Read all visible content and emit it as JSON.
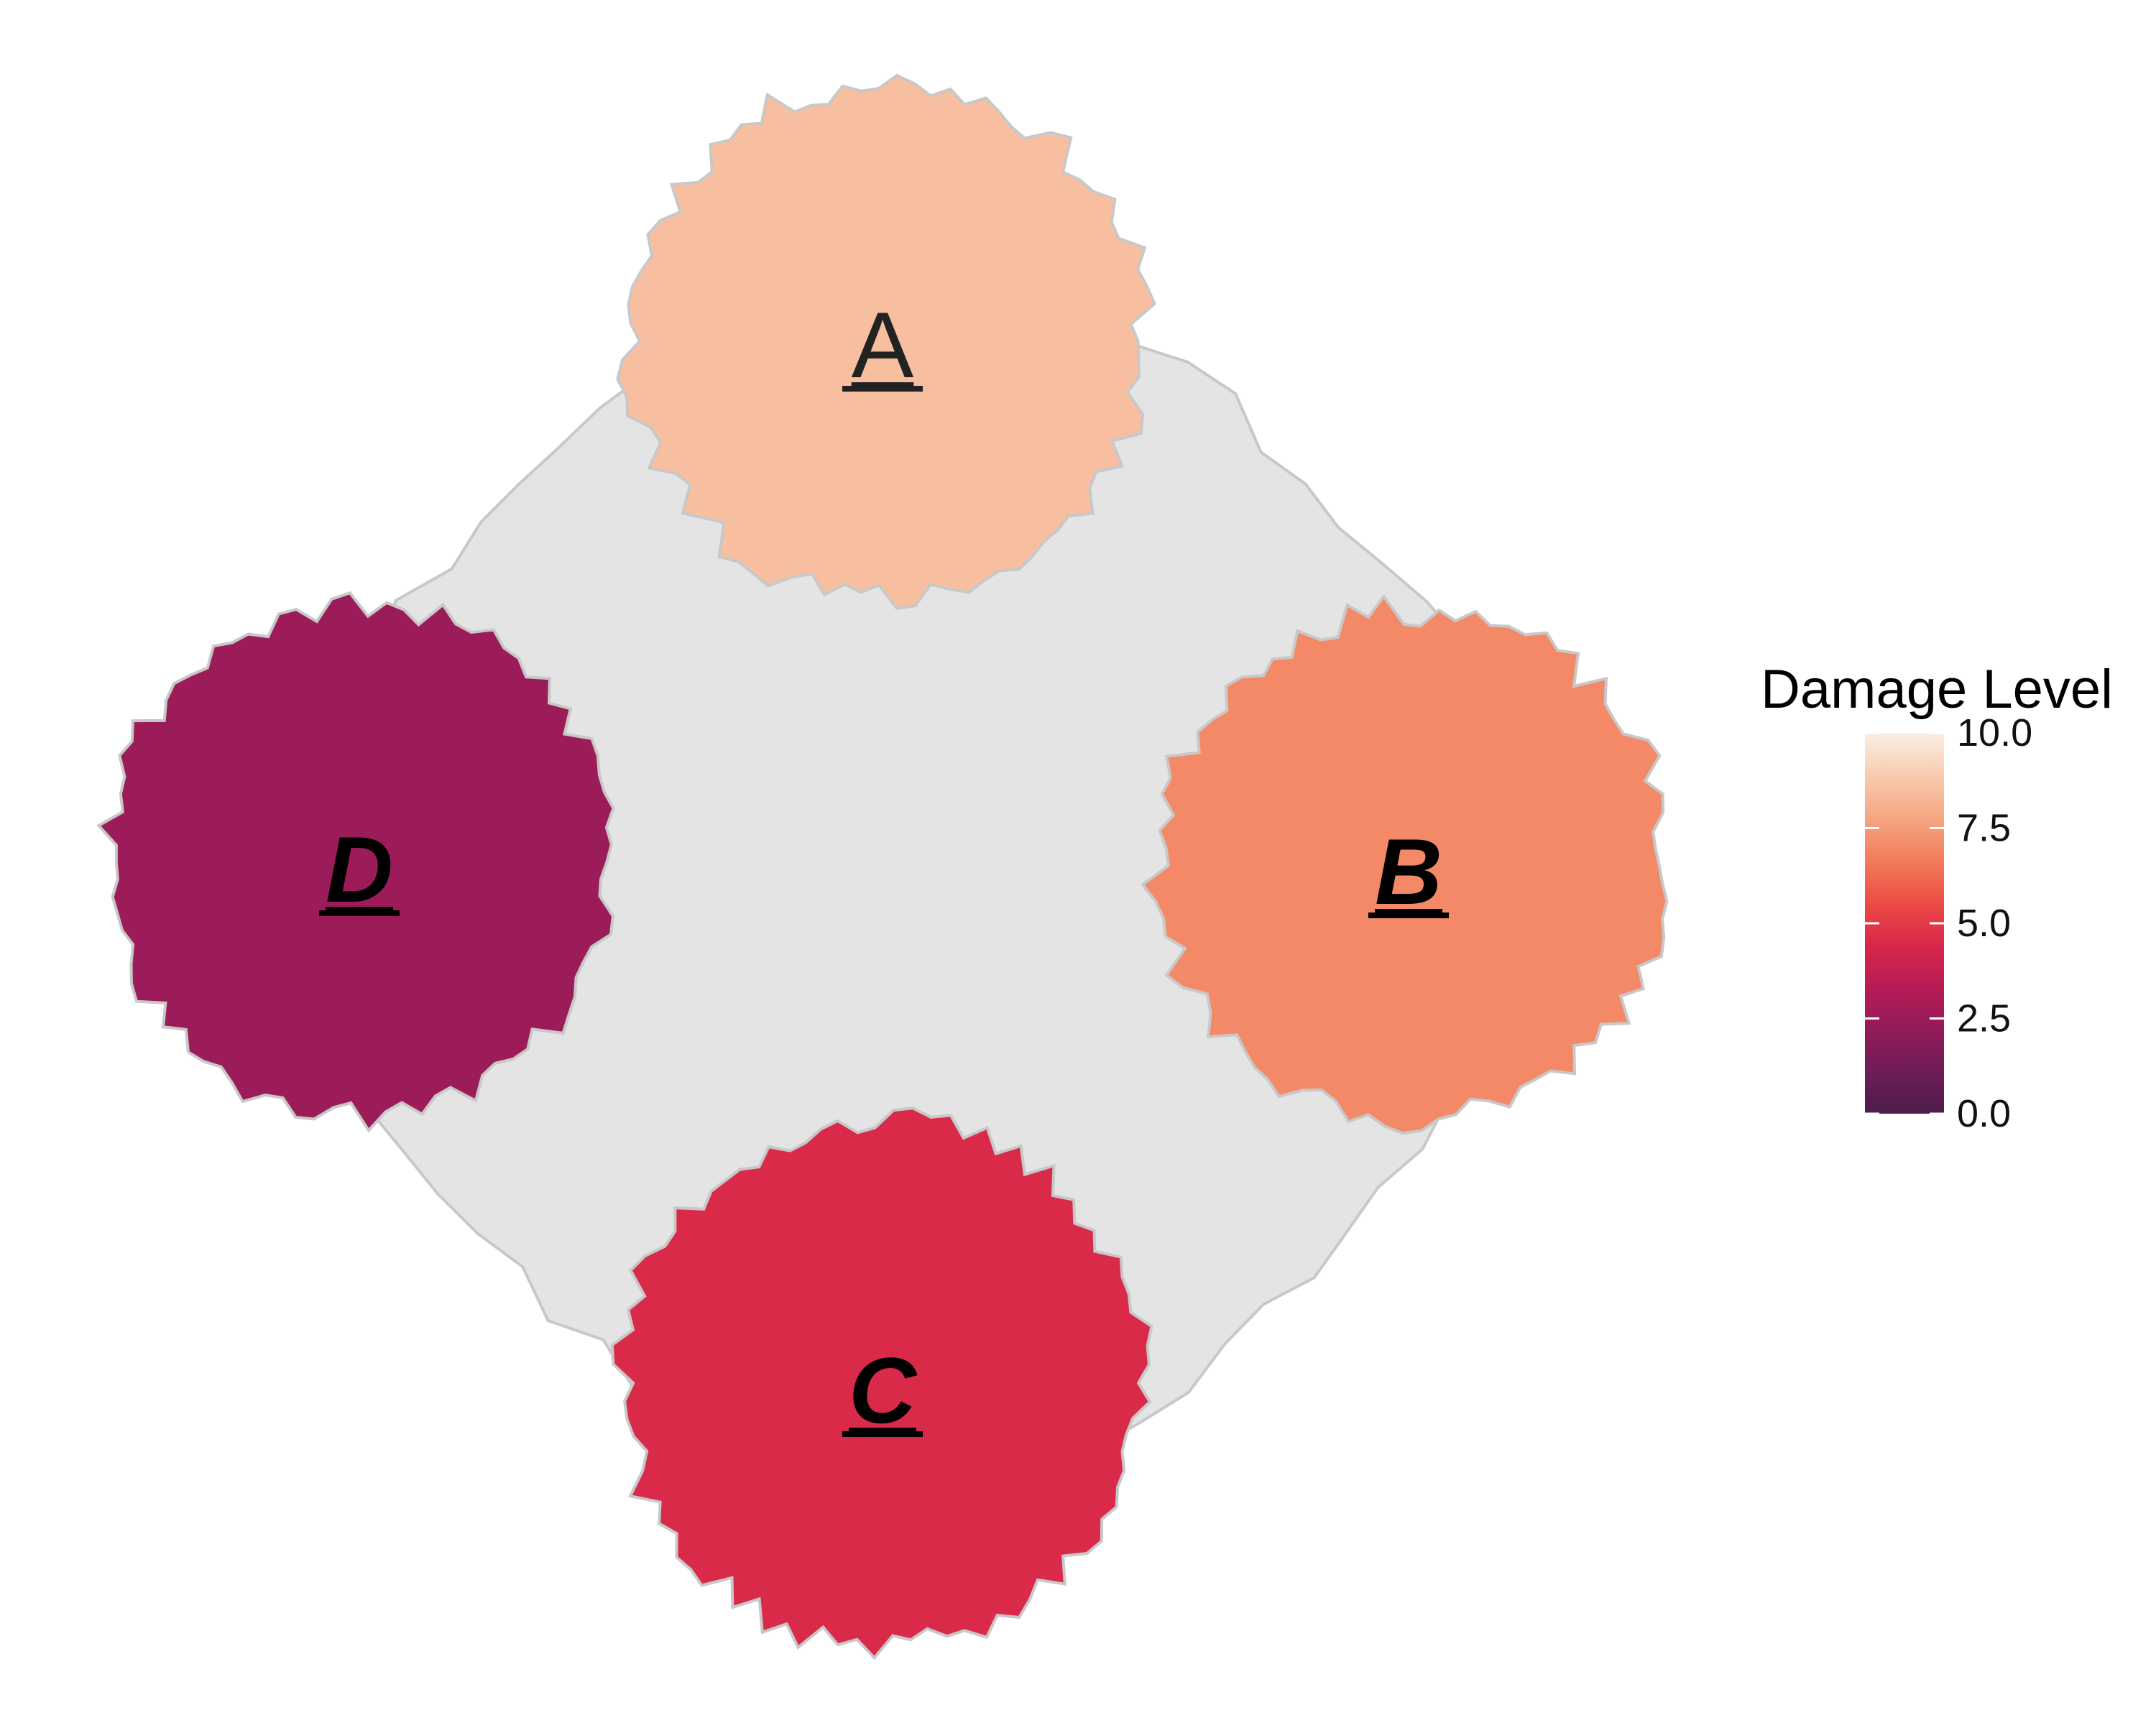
{
  "chart_data": {
    "type": "heatmap",
    "title": "",
    "regions": [
      {
        "id": "A",
        "label": "A",
        "value": 8.5,
        "bold": false,
        "italic": false
      },
      {
        "id": "B",
        "label": "B",
        "value": 7.0,
        "bold": true,
        "italic": true
      },
      {
        "id": "C",
        "label": "C",
        "value": 4.5,
        "bold": true,
        "italic": true
      },
      {
        "id": "D",
        "label": "D",
        "value": 2.5,
        "bold": true,
        "italic": true
      }
    ],
    "legend": {
      "title": "Damage Level",
      "min": 0.0,
      "max": 10.0,
      "ticks": [
        "0.0",
        "2.5",
        "5.0",
        "7.5",
        "10.0"
      ],
      "tick_values": [
        0.0,
        2.5,
        5.0,
        7.5,
        10.0
      ],
      "placement": "right"
    },
    "colors": {
      "background_shape": "#e4e4e4",
      "outline": "#c8c8c8",
      "label_text": "#222222",
      "scale": [
        "#4d1c4a",
        "#6e1d58",
        "#931c5a",
        "#b81c56",
        "#d8284a",
        "#ec4d45",
        "#f27d5a",
        "#f5a682",
        "#f8ccb0",
        "#fbeee4"
      ]
    }
  }
}
